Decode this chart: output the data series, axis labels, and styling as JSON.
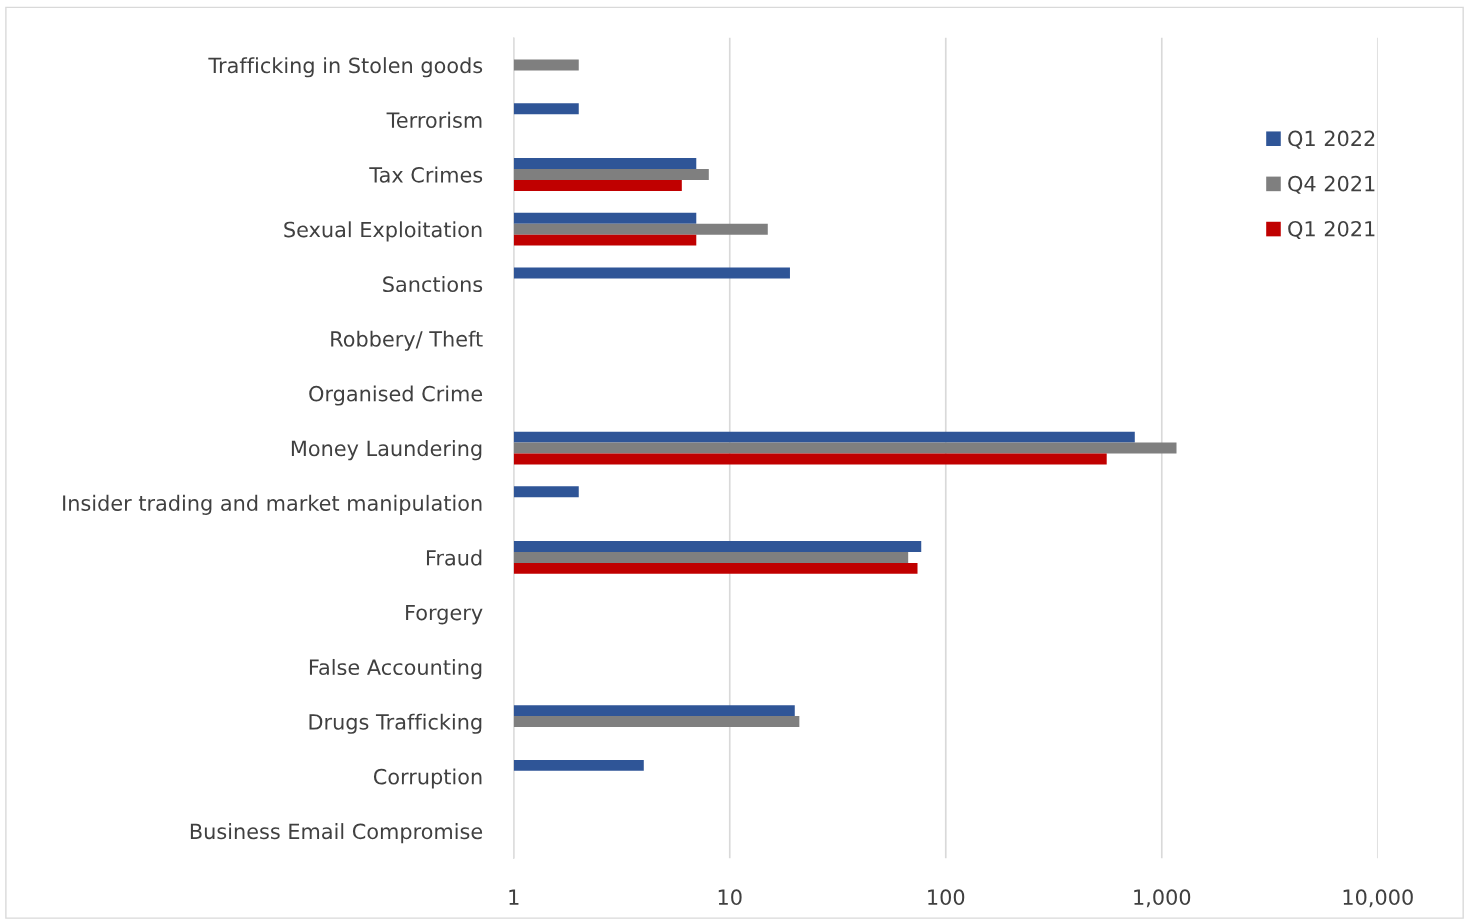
{
  "chart_data": {
    "type": "bar",
    "orientation": "horizontal",
    "log": "x",
    "categories": [
      "Trafficking in Stolen goods",
      "Terrorism",
      "Tax Crimes",
      "Sexual Exploitation",
      "Sanctions",
      "Robbery/ Theft",
      "Organised Crime",
      "Money Laundering",
      "Insider trading and market manipulation",
      "Fraud",
      "Forgery",
      "False Accounting",
      "Drugs Trafficking",
      "Corruption",
      "Business Email Compromise"
    ],
    "series": [
      {
        "name": "Q1 2022",
        "color": "#2f5597",
        "values": [
          null,
          2,
          7,
          7,
          19,
          null,
          null,
          750,
          2,
          77,
          null,
          null,
          20,
          4,
          null
        ]
      },
      {
        "name": "Q4 2021",
        "color": "#7f7f7f",
        "values": [
          2,
          null,
          8,
          15,
          null,
          null,
          null,
          1170,
          null,
          67,
          null,
          null,
          21,
          null,
          null
        ]
      },
      {
        "name": "Q1 2021",
        "color": "#c00000",
        "values": [
          null,
          null,
          6,
          7,
          null,
          null,
          null,
          556,
          null,
          74,
          null,
          null,
          null,
          null,
          null
        ]
      }
    ],
    "xlim": [
      1,
      10000
    ],
    "xticks": [
      1,
      10,
      100,
      {
        "value": 1000,
        "label": "1,000"
      },
      {
        "value": 10000,
        "label": "10,000"
      }
    ],
    "grid": "x",
    "legend": "right"
  }
}
